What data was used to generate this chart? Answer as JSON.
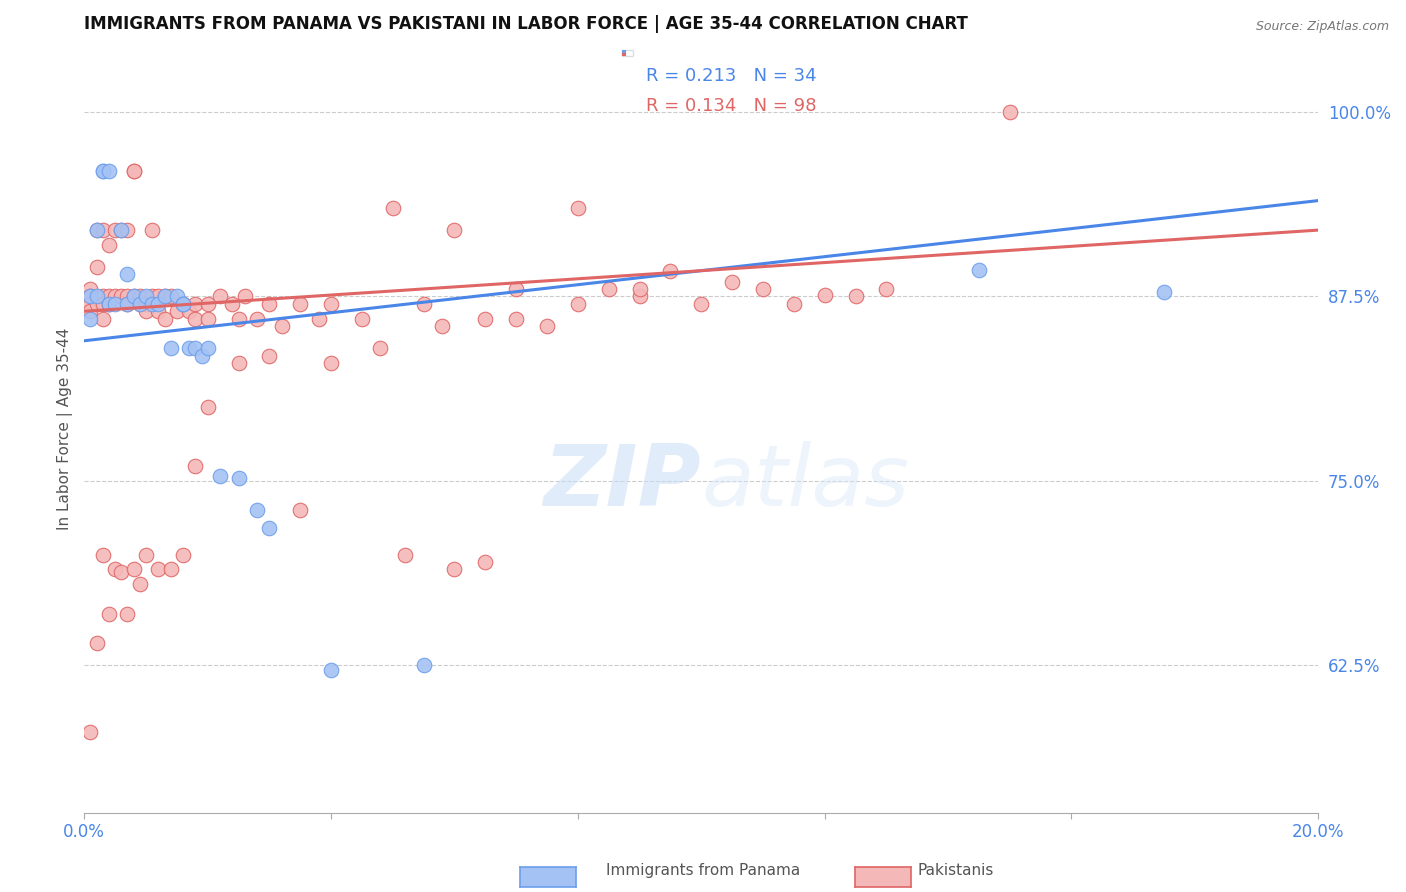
{
  "title": "IMMIGRANTS FROM PANAMA VS PAKISTANI IN LABOR FORCE | AGE 35-44 CORRELATION CHART",
  "source": "Source: ZipAtlas.com",
  "ylabel": "In Labor Force | Age 35-44",
  "xlim": [
    0.0,
    0.2
  ],
  "ylim": [
    0.525,
    1.045
  ],
  "xticks": [
    0.0,
    0.04,
    0.08,
    0.12,
    0.16,
    0.2
  ],
  "xtick_labels": [
    "0.0%",
    "",
    "",
    "",
    "",
    "20.0%"
  ],
  "yticks_right": [
    0.625,
    0.75,
    0.875,
    1.0
  ],
  "ytick_labels_right": [
    "62.5%",
    "75.0%",
    "87.5%",
    "100.0%"
  ],
  "legend_blue_r": "R = 0.213",
  "legend_blue_n": "N = 34",
  "legend_pink_r": "R = 0.134",
  "legend_pink_n": "N = 98",
  "blue_fill": "#a4c2f4",
  "pink_fill": "#f4b8b8",
  "blue_edge": "#6d9eeb",
  "pink_edge": "#e06666",
  "blue_line": "#4a86e8",
  "pink_line": "#e06666",
  "right_tick_color": "#4a86e8",
  "watermark_color": "#d0e4f7",
  "blue_scatter_x": [
    0.001,
    0.001,
    0.002,
    0.002,
    0.003,
    0.003,
    0.004,
    0.004,
    0.005,
    0.006,
    0.007,
    0.007,
    0.008,
    0.009,
    0.01,
    0.011,
    0.012,
    0.013,
    0.014,
    0.015,
    0.016,
    0.016,
    0.017,
    0.018,
    0.019,
    0.02,
    0.022,
    0.025,
    0.028,
    0.03,
    0.04,
    0.055,
    0.145,
    0.175
  ],
  "blue_scatter_y": [
    0.875,
    0.86,
    0.92,
    0.875,
    0.96,
    0.96,
    0.96,
    0.87,
    0.87,
    0.92,
    0.87,
    0.89,
    0.875,
    0.87,
    0.875,
    0.87,
    0.87,
    0.875,
    0.84,
    0.875,
    0.87,
    0.87,
    0.84,
    0.84,
    0.835,
    0.84,
    0.753,
    0.752,
    0.73,
    0.718,
    0.622,
    0.625,
    0.893,
    0.878
  ],
  "pink_scatter_x": [
    0.001,
    0.001,
    0.001,
    0.001,
    0.002,
    0.002,
    0.002,
    0.003,
    0.003,
    0.003,
    0.003,
    0.004,
    0.004,
    0.004,
    0.005,
    0.005,
    0.006,
    0.006,
    0.007,
    0.007,
    0.007,
    0.008,
    0.008,
    0.008,
    0.009,
    0.009,
    0.01,
    0.01,
    0.011,
    0.011,
    0.012,
    0.012,
    0.013,
    0.013,
    0.014,
    0.015,
    0.016,
    0.017,
    0.018,
    0.018,
    0.02,
    0.02,
    0.022,
    0.024,
    0.025,
    0.026,
    0.028,
    0.03,
    0.032,
    0.035,
    0.038,
    0.04,
    0.045,
    0.05,
    0.055,
    0.058,
    0.06,
    0.065,
    0.07,
    0.075,
    0.08,
    0.085,
    0.09,
    0.095,
    0.1,
    0.105,
    0.11,
    0.115,
    0.12,
    0.125,
    0.13,
    0.15,
    0.001,
    0.002,
    0.003,
    0.004,
    0.005,
    0.006,
    0.007,
    0.008,
    0.009,
    0.01,
    0.012,
    0.014,
    0.016,
    0.018,
    0.02,
    0.025,
    0.03,
    0.035,
    0.04,
    0.048,
    0.052,
    0.06,
    0.065,
    0.07,
    0.08,
    0.09
  ],
  "pink_scatter_y": [
    0.88,
    0.875,
    0.87,
    0.865,
    0.92,
    0.895,
    0.87,
    0.92,
    0.875,
    0.87,
    0.86,
    0.91,
    0.875,
    0.87,
    0.92,
    0.875,
    0.92,
    0.875,
    0.92,
    0.875,
    0.87,
    0.96,
    0.96,
    0.875,
    0.875,
    0.87,
    0.87,
    0.865,
    0.92,
    0.875,
    0.875,
    0.865,
    0.875,
    0.86,
    0.875,
    0.865,
    0.87,
    0.865,
    0.87,
    0.86,
    0.87,
    0.86,
    0.875,
    0.87,
    0.86,
    0.875,
    0.86,
    0.87,
    0.855,
    0.87,
    0.86,
    0.87,
    0.86,
    0.935,
    0.87,
    0.855,
    0.92,
    0.86,
    0.88,
    0.855,
    0.87,
    0.88,
    0.875,
    0.892,
    0.87,
    0.885,
    0.88,
    0.87,
    0.876,
    0.875,
    0.88,
    1.0,
    0.58,
    0.64,
    0.7,
    0.66,
    0.69,
    0.688,
    0.66,
    0.69,
    0.68,
    0.7,
    0.69,
    0.69,
    0.7,
    0.76,
    0.8,
    0.83,
    0.835,
    0.73,
    0.83,
    0.84,
    0.7,
    0.69,
    0.695,
    0.86,
    0.935,
    0.88
  ]
}
